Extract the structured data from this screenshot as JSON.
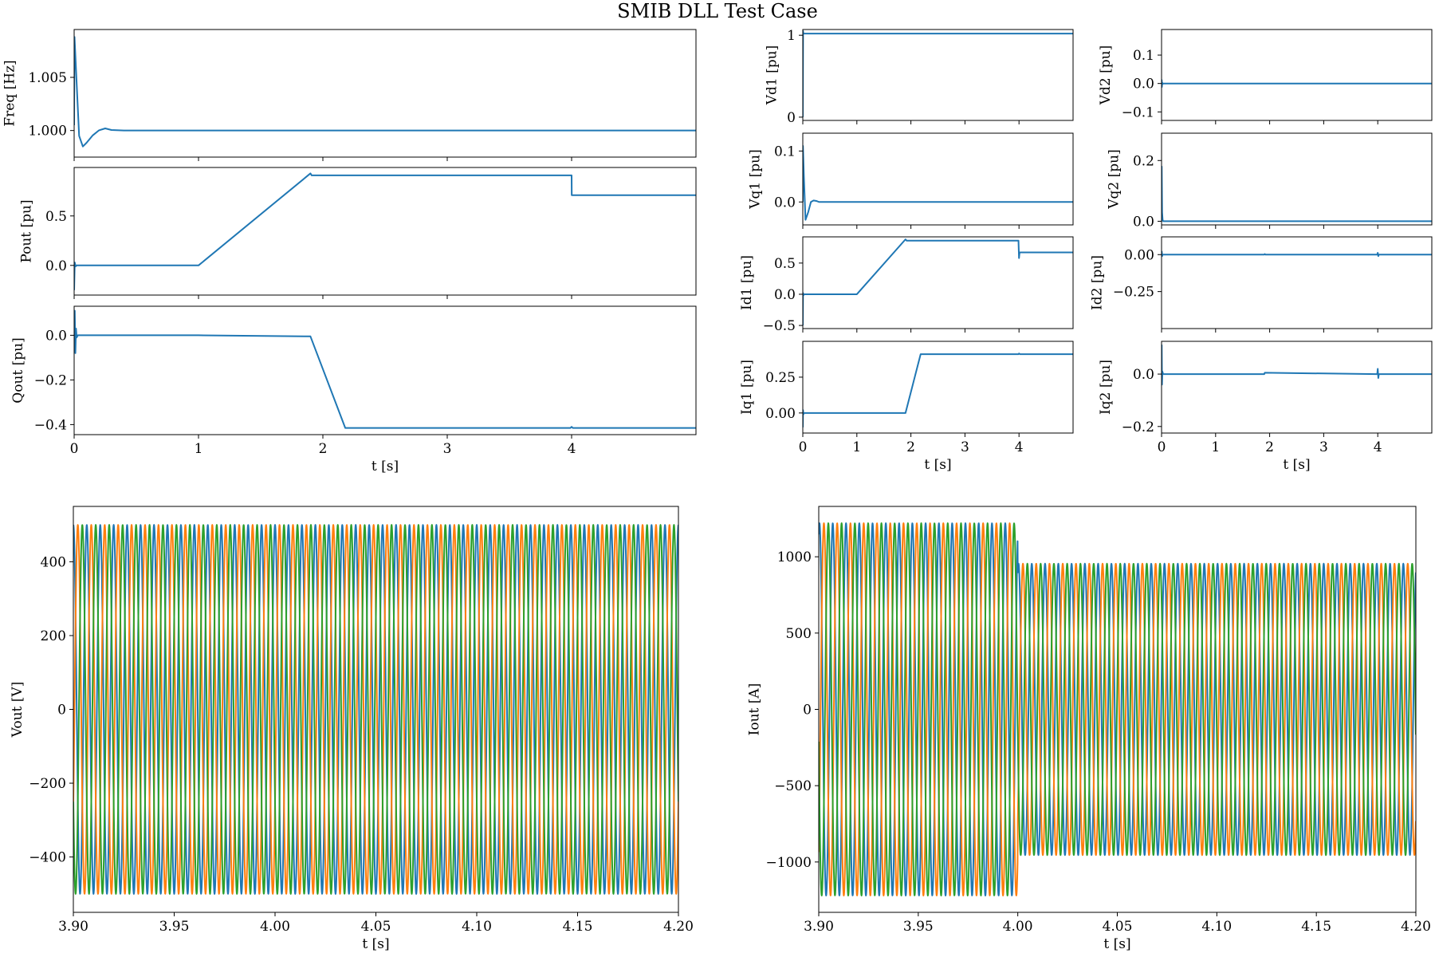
{
  "figure": {
    "title": "SMIB DLL Test Case"
  },
  "colors": {
    "blue": "#1f77b4",
    "orange": "#ff7f0e",
    "green": "#2ca02c"
  },
  "chart_data": [
    {
      "id": "freq",
      "type": "line",
      "ylabel": "Freq [Hz]",
      "xlabel": "",
      "xlim": [
        0,
        5
      ],
      "ylim": [
        0.9975,
        1.0095
      ],
      "yticks": [
        1.0,
        1.005
      ],
      "ytick_labels": [
        "1.000",
        "1.005"
      ],
      "xticks": [
        0,
        1,
        2,
        3,
        4
      ],
      "xtick_labels": [],
      "series": [
        {
          "color": "blue",
          "x": [
            0,
            0.003,
            0.02,
            0.04,
            0.07,
            0.1,
            0.15,
            0.2,
            0.25,
            0.3,
            0.4,
            1,
            2,
            3,
            4,
            5
          ],
          "y": [
            1.0005,
            1.0088,
            1.0045,
            0.9995,
            0.9985,
            0.99885,
            0.99955,
            1.00002,
            1.0002,
            1.00005,
            1.0,
            1.0,
            1.0,
            1.0,
            1.0,
            1.0
          ]
        }
      ]
    },
    {
      "id": "pout",
      "type": "line",
      "ylabel": "Pout [pu]",
      "xlabel": "",
      "xlim": [
        0,
        5
      ],
      "ylim": [
        -0.3,
        0.99
      ],
      "yticks": [
        0.0,
        0.5
      ],
      "ytick_labels": [
        "0.0",
        "0.5"
      ],
      "xticks": [
        0,
        1,
        2,
        3,
        4
      ],
      "xtick_labels": [],
      "series": [
        {
          "color": "blue",
          "x": [
            0,
            0.005,
            0.012,
            0.02,
            0.03,
            1.0,
            1.9,
            1.91,
            2.2,
            3.99,
            4.0,
            4.001,
            5
          ],
          "y": [
            -0.25,
            0.03,
            -0.01,
            0.0,
            0.0,
            0.0,
            0.93,
            0.91,
            0.91,
            0.91,
            0.91,
            0.71,
            0.71
          ]
        }
      ]
    },
    {
      "id": "qout",
      "type": "line",
      "ylabel": "Qout [pu]",
      "xlabel": "t [s]",
      "xlim": [
        0,
        5
      ],
      "ylim": [
        -0.445,
        0.13
      ],
      "yticks": [
        0.0,
        -0.2,
        -0.4
      ],
      "ytick_labels": [
        "0.0",
        "−0.2",
        "−0.4"
      ],
      "xticks": [
        0,
        1,
        2,
        3,
        4
      ],
      "xtick_labels": [
        "0",
        "1",
        "2",
        "3",
        "4"
      ],
      "series": [
        {
          "color": "blue",
          "x": [
            0,
            0.005,
            0.01,
            0.015,
            0.02,
            0.03,
            0.04,
            1.0,
            1.9,
            2.18,
            3.99,
            4.0,
            4.01,
            4.03,
            5
          ],
          "y": [
            0.02,
            0.11,
            -0.08,
            0.03,
            -0.01,
            0.0,
            0.0,
            0.0,
            -0.005,
            -0.415,
            -0.415,
            -0.41,
            -0.415,
            -0.415,
            -0.415
          ]
        }
      ]
    },
    {
      "id": "vd1",
      "type": "line",
      "ylabel": "Vd1 [pu]",
      "xlabel": "",
      "xlim": [
        0,
        5
      ],
      "ylim": [
        -0.04,
        1.07
      ],
      "yticks": [
        0,
        1
      ],
      "ytick_labels": [
        "0",
        "1"
      ],
      "xticks": [
        0,
        1,
        2,
        3,
        4
      ],
      "xtick_labels": [],
      "series": [
        {
          "color": "blue",
          "x": [
            0,
            0.005,
            0.01,
            0.02,
            5
          ],
          "y": [
            0.0,
            1.05,
            1.02,
            1.02,
            1.02
          ]
        }
      ]
    },
    {
      "id": "vd2",
      "type": "line",
      "ylabel": "Vd2 [pu]",
      "xlabel": "",
      "xlim": [
        0,
        5
      ],
      "ylim": [
        -0.13,
        0.19
      ],
      "yticks": [
        0.1,
        0.0,
        -0.1
      ],
      "ytick_labels": [
        "0.1",
        "0.0",
        "−0.1"
      ],
      "xticks": [
        0,
        1,
        2,
        3,
        4
      ],
      "xtick_labels": [],
      "series": [
        {
          "color": "blue",
          "x": [
            0,
            0.003,
            0.006,
            0.01,
            0.02,
            0.03,
            5
          ],
          "y": [
            0.0,
            0.012,
            -0.012,
            0.004,
            -0.002,
            0.0,
            0.0
          ]
        }
      ]
    },
    {
      "id": "vq1",
      "type": "line",
      "ylabel": "Vq1 [pu]",
      "xlabel": "",
      "xlim": [
        0,
        5
      ],
      "ylim": [
        -0.045,
        0.135
      ],
      "yticks": [
        0.1,
        0.0
      ],
      "ytick_labels": [
        "0.1",
        "0.0"
      ],
      "xticks": [
        0,
        1,
        2,
        3,
        4
      ],
      "xtick_labels": [],
      "series": [
        {
          "color": "blue",
          "x": [
            0,
            0.003,
            0.02,
            0.05,
            0.1,
            0.15,
            0.2,
            0.25,
            0.3,
            0.4,
            5
          ],
          "y": [
            0.0,
            0.11,
            0.05,
            -0.035,
            -0.02,
            0.0,
            0.003,
            0.002,
            0.0,
            0.0,
            0.0
          ]
        }
      ]
    },
    {
      "id": "vq2",
      "type": "line",
      "ylabel": "Vq2 [pu]",
      "xlabel": "",
      "xlim": [
        0,
        5
      ],
      "ylim": [
        -0.012,
        0.29
      ],
      "yticks": [
        0.2,
        0.0
      ],
      "ytick_labels": [
        "0.2",
        "0.0"
      ],
      "xticks": [
        0,
        1,
        2,
        3,
        4
      ],
      "xtick_labels": [],
      "series": [
        {
          "color": "blue",
          "x": [
            0,
            0.003,
            0.01,
            0.02,
            0.03,
            5
          ],
          "y": [
            0.0,
            0.18,
            0.03,
            0.005,
            0.0,
            0.0
          ]
        }
      ]
    },
    {
      "id": "id1",
      "type": "line",
      "ylabel": "Id1 [pu]",
      "xlabel": "",
      "xlim": [
        0,
        5
      ],
      "ylim": [
        -0.55,
        0.92
      ],
      "yticks": [
        0.5,
        0.0,
        -0.5
      ],
      "ytick_labels": [
        "0.5",
        "0.0",
        "−0.5"
      ],
      "xticks": [
        0,
        1,
        2,
        3,
        4
      ],
      "xtick_labels": [],
      "series": [
        {
          "color": "blue",
          "x": [
            0,
            0.004,
            0.01,
            0.02,
            1.0,
            1.9,
            1.92,
            2.2,
            3.99,
            4.0,
            4.01,
            5
          ],
          "y": [
            -0.5,
            0.02,
            -0.02,
            0.0,
            0.0,
            0.88,
            0.86,
            0.86,
            0.86,
            0.58,
            0.67,
            0.67
          ]
        }
      ]
    },
    {
      "id": "id2",
      "type": "line",
      "ylabel": "Id2 [pu]",
      "xlabel": "",
      "xlim": [
        0,
        5
      ],
      "ylim": [
        -0.5,
        0.12
      ],
      "yticks": [
        0.0,
        -0.25
      ],
      "ytick_labels": [
        "0.00",
        "−0.25"
      ],
      "xticks": [
        0,
        1,
        2,
        3,
        4
      ],
      "xtick_labels": [],
      "series": [
        {
          "color": "blue",
          "x": [
            0,
            0.004,
            0.01,
            0.02,
            1.9,
            1.91,
            1.92,
            3.99,
            4.0,
            4.01,
            4.02,
            5
          ],
          "y": [
            0.0,
            0.02,
            -0.01,
            0.0,
            0.0,
            0.004,
            0.0,
            0.0,
            0.012,
            -0.01,
            0.0,
            0.0
          ]
        }
      ]
    },
    {
      "id": "iq1",
      "type": "line",
      "ylabel": "Iq1 [pu]",
      "xlabel": "t [s]",
      "xlim": [
        0,
        5
      ],
      "ylim": [
        -0.14,
        0.5
      ],
      "yticks": [
        0.25,
        0.0
      ],
      "ytick_labels": [
        "0.25",
        "0.00"
      ],
      "xticks": [
        0,
        1,
        2,
        3,
        4
      ],
      "xtick_labels": [
        "0",
        "1",
        "2",
        "3",
        "4"
      ],
      "series": [
        {
          "color": "blue",
          "x": [
            0,
            0.004,
            0.01,
            0.02,
            1.9,
            2.18,
            3.99,
            4.0,
            4.02,
            5
          ],
          "y": [
            -0.1,
            0.02,
            -0.01,
            0.0,
            0.0,
            0.41,
            0.41,
            0.415,
            0.41,
            0.41
          ]
        }
      ]
    },
    {
      "id": "iq2",
      "type": "line",
      "ylabel": "Iq2 [pu]",
      "xlabel": "t [s]",
      "xlim": [
        0,
        5
      ],
      "ylim": [
        -0.225,
        0.125
      ],
      "yticks": [
        0.0,
        -0.2
      ],
      "ytick_labels": [
        "0.0",
        "−0.2"
      ],
      "xticks": [
        0,
        1,
        2,
        3,
        4
      ],
      "xtick_labels": [
        "0",
        "1",
        "2",
        "3",
        "4"
      ],
      "series": [
        {
          "color": "blue",
          "x": [
            0,
            0.003,
            0.008,
            0.015,
            0.03,
            1.9,
            1.91,
            3.99,
            4.0,
            4.01,
            4.02,
            5
          ],
          "y": [
            0.0,
            0.11,
            -0.04,
            0.01,
            0.0,
            0.0,
            0.005,
            0.0,
            0.02,
            -0.015,
            0.0,
            0.0
          ]
        }
      ]
    },
    {
      "id": "vout",
      "type": "line",
      "kind": "three-phase",
      "ylabel": "Vout [V]",
      "xlabel": "t [s]",
      "xlim": [
        3.9,
        4.2
      ],
      "ylim": [
        -550,
        550
      ],
      "yticks": [
        400,
        200,
        0,
        -200,
        -400
      ],
      "ytick_labels": [
        "400",
        "200",
        "0",
        "−200",
        "−400"
      ],
      "xticks": [
        3.9,
        3.95,
        4.0,
        4.05,
        4.1,
        4.15,
        4.2
      ],
      "xtick_labels": [
        "3.90",
        "3.95",
        "4.00",
        "4.05",
        "4.10",
        "4.15",
        "4.20"
      ],
      "frequency_hz": 150,
      "series": [
        {
          "color": "blue",
          "amplitude": 500,
          "phase_deg": 90
        },
        {
          "color": "orange",
          "amplitude": 500,
          "phase_deg": -30
        },
        {
          "color": "green",
          "amplitude": 500,
          "phase_deg": 210
        }
      ]
    },
    {
      "id": "iout",
      "type": "line",
      "kind": "three-phase",
      "ylabel": "Iout [A]",
      "xlabel": "t [s]",
      "xlim": [
        3.9,
        4.2
      ],
      "ylim": [
        -1330,
        1330
      ],
      "yticks": [
        1000,
        500,
        0,
        -500,
        -1000
      ],
      "ytick_labels": [
        "1000",
        "500",
        "0",
        "−500",
        "−1000"
      ],
      "xticks": [
        3.9,
        3.95,
        4.0,
        4.05,
        4.1,
        4.15,
        4.2
      ],
      "xtick_labels": [
        "3.90",
        "3.95",
        "4.00",
        "4.05",
        "4.10",
        "4.15",
        "4.20"
      ],
      "frequency_hz": 150,
      "step_time": 4.0,
      "series": [
        {
          "color": "blue",
          "amplitude_before": 1220,
          "amplitude_after": 955,
          "phase_deg": 70
        },
        {
          "color": "orange",
          "amplitude_before": 1220,
          "amplitude_after": 955,
          "phase_deg": -50
        },
        {
          "color": "green",
          "amplitude_before": 1220,
          "amplitude_after": 955,
          "phase_deg": 190
        }
      ]
    }
  ]
}
